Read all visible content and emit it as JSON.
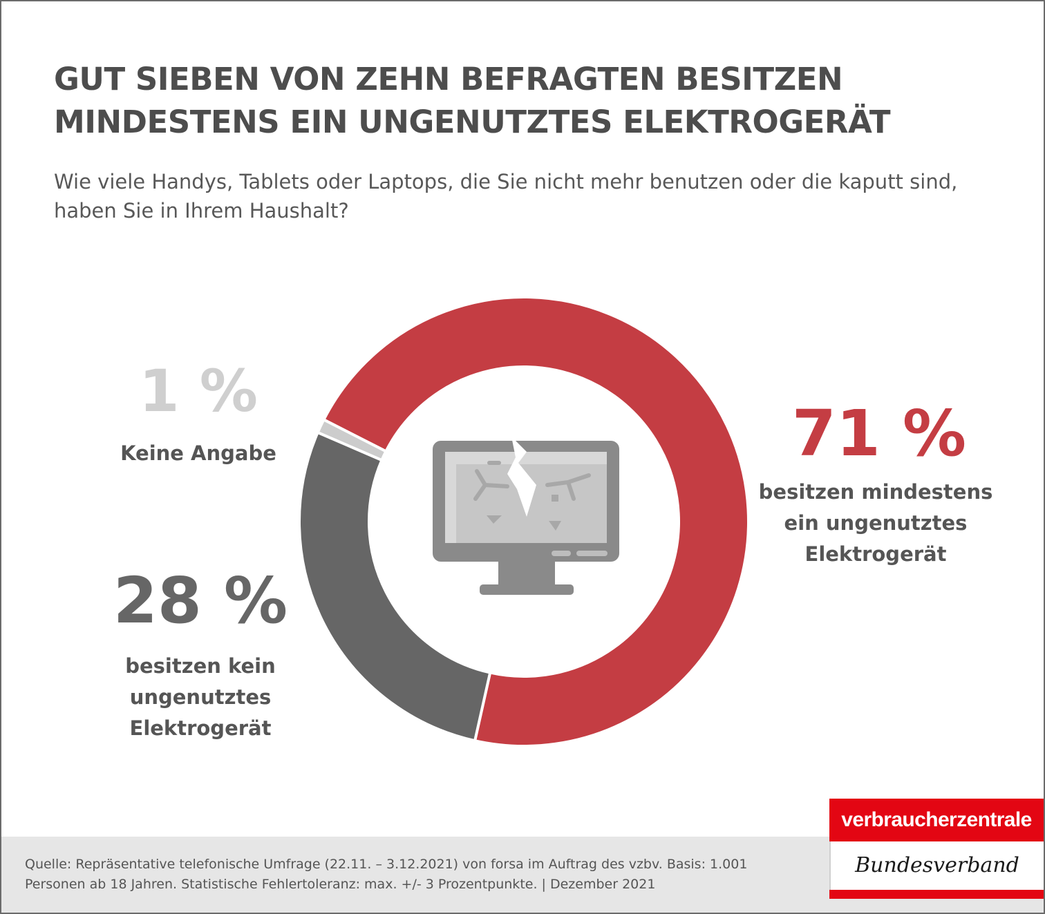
{
  "chart_data": {
    "type": "pie",
    "title": "GUT SIEBEN VON ZEHN BEFRAGTEN BESITZEN MINDESTENS EIN UNGENUTZTES ELEKTROGERÄT",
    "subtitle": "Wie viele Handys, Tablets oder Laptops, die Sie nicht mehr benutzen oder die kaputt sind, haben Sie in Ihrem Haushalt?",
    "slices": [
      {
        "value": 71,
        "display": "71 %",
        "label": "besitzen mindestens\nein ungenutztes\nElektrogerät",
        "color": "#c43d43"
      },
      {
        "value": 28,
        "display": "28 %",
        "label": "besitzen kein\nungenutztes\nElektrogerät",
        "color": "#666666"
      },
      {
        "value": 1,
        "display": "1 %",
        "label": "Keine Angabe",
        "color": "#cccccc"
      }
    ],
    "center_icon": "broken-monitor-icon"
  },
  "footer": {
    "source": "Quelle: Repräsentative telefonische Umfrage (22.11. – 3.12.2021) von forsa im Auftrag des vzbv. Basis: 1.001 Personen ab 18 Jahren. Statistische Fehlertoleranz: max. +/- 3 Prozentpunkte. | Dezember 2021"
  },
  "logo": {
    "top": "verbraucherzentrale",
    "bottom": "Bundesverband"
  }
}
